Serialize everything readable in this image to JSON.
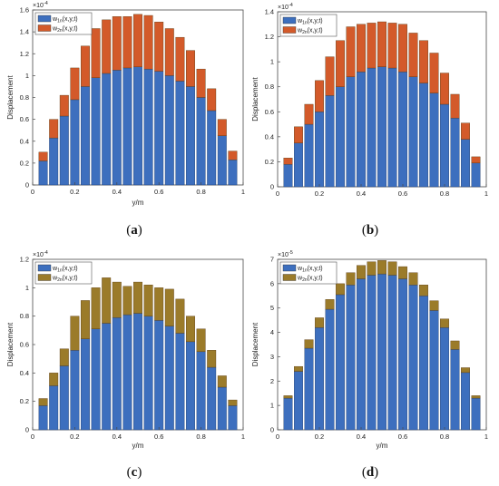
{
  "colors": {
    "series1": "#3d6fbe",
    "series2": "#d35a2a",
    "series2_alt": "#9b7b2a"
  },
  "chart_data": [
    {
      "type": "bar",
      "stacked": true,
      "caption_open": "(",
      "caption_letter": "a",
      "caption_close": ")",
      "xlabel": "y/m",
      "ylabel": "Displacement",
      "y_multiplier": "×10",
      "y_exponent": "-4",
      "xlim": [
        0,
        1
      ],
      "ylim": [
        0,
        1.6
      ],
      "yticks": [
        "0",
        "0.2",
        "0.4",
        "0.6",
        "0.8",
        "1",
        "1.2",
        "1.4",
        "1.6"
      ],
      "xticks": [
        "0",
        "0.2",
        "0.4",
        "0.6",
        "0.8",
        "1"
      ],
      "legend": {
        "position": "top-left",
        "entries": [
          [
            "w",
            "1n",
            "(x,y,t)"
          ],
          [
            "w",
            "2n",
            "(x,y,t)"
          ]
        ]
      },
      "series_names": [
        "w1n(x,y,t)",
        "w2n(x,y,t)"
      ],
      "x": [
        0.05,
        0.1,
        0.15,
        0.2,
        0.25,
        0.3,
        0.35,
        0.4,
        0.45,
        0.5,
        0.55,
        0.6,
        0.65,
        0.7,
        0.75,
        0.8,
        0.85,
        0.9,
        0.95
      ],
      "series": [
        {
          "values": [
            0.22,
            0.43,
            0.63,
            0.78,
            0.9,
            0.98,
            1.02,
            1.05,
            1.07,
            1.08,
            1.06,
            1.04,
            1.0,
            0.95,
            0.9,
            0.8,
            0.68,
            0.45,
            0.23
          ]
        },
        {
          "values": [
            0.08,
            0.17,
            0.19,
            0.29,
            0.37,
            0.45,
            0.49,
            0.49,
            0.47,
            0.48,
            0.49,
            0.45,
            0.43,
            0.4,
            0.33,
            0.26,
            0.2,
            0.15,
            0.08
          ]
        }
      ]
    },
    {
      "type": "bar",
      "stacked": true,
      "caption_open": "(",
      "caption_letter": "b",
      "caption_close": ")",
      "xlabel": "",
      "ylabel": "Displacement",
      "y_multiplier": "×10",
      "y_exponent": "-4",
      "xlim": [
        0,
        1
      ],
      "ylim": [
        0,
        1.4
      ],
      "yticks": [
        "0",
        "0.2",
        "0.4",
        "0.6",
        "0.8",
        "1",
        "1.2",
        "1.4"
      ],
      "xticks": [
        "0",
        "0.2",
        "0.4",
        "0.6",
        "0.8",
        "1"
      ],
      "legend": {
        "position": "top-left",
        "entries": [
          [
            "w",
            "1n",
            "(x,y,t)"
          ],
          [
            "w",
            "2n",
            "(x,y,t)"
          ]
        ]
      },
      "series_names": [
        "w1n(x,y,t)",
        "w2n(x,y,t)"
      ],
      "x": [
        0.05,
        0.1,
        0.15,
        0.2,
        0.25,
        0.3,
        0.35,
        0.4,
        0.45,
        0.5,
        0.55,
        0.6,
        0.65,
        0.7,
        0.75,
        0.8,
        0.85,
        0.9,
        0.95
      ],
      "series": [
        {
          "values": [
            0.18,
            0.35,
            0.5,
            0.6,
            0.73,
            0.8,
            0.88,
            0.92,
            0.95,
            0.96,
            0.95,
            0.92,
            0.88,
            0.83,
            0.75,
            0.66,
            0.55,
            0.38,
            0.19
          ]
        },
        {
          "values": [
            0.05,
            0.13,
            0.16,
            0.25,
            0.31,
            0.37,
            0.4,
            0.38,
            0.36,
            0.36,
            0.36,
            0.38,
            0.35,
            0.34,
            0.32,
            0.25,
            0.19,
            0.13,
            0.05
          ]
        }
      ]
    },
    {
      "type": "bar",
      "stacked": true,
      "caption_open": "(",
      "caption_letter": "c",
      "caption_close": ")",
      "xlabel": "y/m",
      "ylabel": "Displacement",
      "y_multiplier": "×10",
      "y_exponent": "-4",
      "xlim": [
        0,
        1
      ],
      "ylim": [
        0,
        1.2
      ],
      "yticks": [
        "0",
        "0.2",
        "0.4",
        "0.6",
        "0.8",
        "1",
        "1.2"
      ],
      "xticks": [
        "0",
        "0.2",
        "0.4",
        "0.6",
        "0.8",
        "1"
      ],
      "legend": {
        "position": "top-left",
        "entries": [
          [
            "w",
            "1n",
            "(x,y,t)"
          ],
          [
            "w",
            "2n",
            "(x,y,t)"
          ]
        ]
      },
      "series_names": [
        "w1n(x,y,t)",
        "w2n(x,y,t)"
      ],
      "x": [
        0.05,
        0.1,
        0.15,
        0.2,
        0.25,
        0.3,
        0.35,
        0.4,
        0.45,
        0.5,
        0.55,
        0.6,
        0.65,
        0.7,
        0.75,
        0.8,
        0.85,
        0.9,
        0.95
      ],
      "series": [
        {
          "values": [
            0.17,
            0.31,
            0.45,
            0.56,
            0.64,
            0.71,
            0.75,
            0.79,
            0.81,
            0.82,
            0.8,
            0.77,
            0.73,
            0.68,
            0.62,
            0.55,
            0.44,
            0.3,
            0.17
          ]
        },
        {
          "values": [
            0.05,
            0.09,
            0.12,
            0.24,
            0.27,
            0.29,
            0.32,
            0.25,
            0.2,
            0.22,
            0.22,
            0.23,
            0.26,
            0.24,
            0.18,
            0.16,
            0.12,
            0.08,
            0.04
          ]
        }
      ]
    },
    {
      "type": "bar",
      "stacked": true,
      "caption_open": "(",
      "caption_letter": "d",
      "caption_close": ")",
      "xlabel": "y/m",
      "ylabel": "Displacement",
      "y_multiplier": "×10",
      "y_exponent": "-5",
      "xlim": [
        0,
        1
      ],
      "ylim": [
        0,
        7
      ],
      "yticks": [
        "0",
        "1",
        "2",
        "3",
        "4",
        "5",
        "6",
        "7"
      ],
      "xticks": [
        "0",
        "0.2",
        "0.4",
        "0.6",
        "0.8",
        "1"
      ],
      "legend": {
        "position": "top-left",
        "entries": [
          [
            "w",
            "1n",
            "(x,y,t)"
          ],
          [
            "w",
            "2n",
            "(x,y,t)"
          ]
        ]
      },
      "series_names": [
        "w1n(x,y,t)",
        "w2n(x,y,t)"
      ],
      "x": [
        0.05,
        0.1,
        0.15,
        0.2,
        0.25,
        0.3,
        0.35,
        0.4,
        0.45,
        0.5,
        0.55,
        0.6,
        0.65,
        0.7,
        0.75,
        0.8,
        0.85,
        0.9,
        0.95
      ],
      "series": [
        {
          "values": [
            1.3,
            2.4,
            3.35,
            4.2,
            4.95,
            5.55,
            5.95,
            6.2,
            6.35,
            6.4,
            6.35,
            6.2,
            5.95,
            5.5,
            4.9,
            4.2,
            3.3,
            2.35,
            1.3
          ]
        },
        {
          "values": [
            0.1,
            0.2,
            0.35,
            0.4,
            0.4,
            0.45,
            0.5,
            0.55,
            0.55,
            0.55,
            0.55,
            0.5,
            0.5,
            0.45,
            0.4,
            0.35,
            0.35,
            0.2,
            0.1
          ]
        }
      ]
    }
  ]
}
